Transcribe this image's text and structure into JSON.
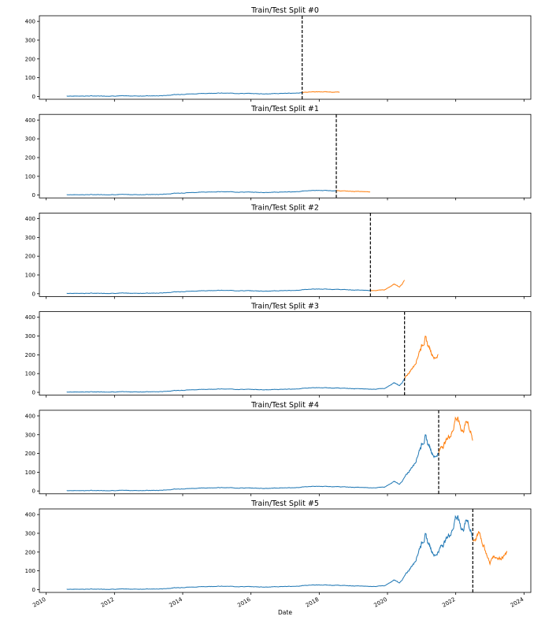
{
  "figure": {
    "xlabel": "Date",
    "x_ticks": [
      "2010",
      "2012",
      "2014",
      "2016",
      "2018",
      "2020",
      "2022",
      "2024"
    ],
    "y_ticks": [
      "0",
      "100",
      "200",
      "300",
      "400"
    ],
    "colors": {
      "train": "#1f77b4",
      "test": "#ff7f0e",
      "split_line": "#000000",
      "axes": "#000000"
    }
  },
  "chart_data": [
    {
      "type": "line",
      "title": "Train/Test Split #0",
      "xlim": [
        2009.8,
        2024.2
      ],
      "ylim": [
        -15,
        430
      ],
      "split_date": 2017.5,
      "test_end": 2018.6,
      "grid": false,
      "legend": "none"
    },
    {
      "type": "line",
      "title": "Train/Test Split #1",
      "xlim": [
        2009.8,
        2024.2
      ],
      "ylim": [
        -15,
        430
      ],
      "split_date": 2018.5,
      "test_end": 2019.5,
      "grid": false,
      "legend": "none"
    },
    {
      "type": "line",
      "title": "Train/Test Split #2",
      "xlim": [
        2009.8,
        2024.2
      ],
      "ylim": [
        -15,
        430
      ],
      "split_date": 2019.5,
      "test_end": 2020.5,
      "grid": false,
      "legend": "none"
    },
    {
      "type": "line",
      "title": "Train/Test Split #3",
      "xlim": [
        2009.8,
        2024.2
      ],
      "ylim": [
        -15,
        430
      ],
      "split_date": 2020.5,
      "test_end": 2021.5,
      "grid": false,
      "legend": "none"
    },
    {
      "type": "line",
      "title": "Train/Test Split #4",
      "xlim": [
        2009.8,
        2024.2
      ],
      "ylim": [
        -15,
        430
      ],
      "split_date": 2021.5,
      "test_end": 2022.5,
      "grid": false,
      "legend": "none"
    },
    {
      "type": "line",
      "title": "Train/Test Split #5",
      "xlim": [
        2009.8,
        2024.2
      ],
      "ylim": [
        -15,
        430
      ],
      "split_date": 2022.5,
      "test_end": 2023.5,
      "grid": false,
      "legend": "none"
    }
  ],
  "series_keypoints": {
    "x": [
      2010.6,
      2013.3,
      2013.8,
      2014.3,
      2015.0,
      2015.8,
      2016.5,
      2017.3,
      2017.8,
      2018.5,
      2019.0,
      2019.5,
      2019.9,
      2020.2,
      2020.35,
      2020.5,
      2020.8,
      2020.95,
      2021.1,
      2021.2,
      2021.4,
      2021.5,
      2021.9,
      2022.0,
      2022.2,
      2022.35,
      2022.5,
      2022.7,
      2022.85,
      2023.0,
      2023.1,
      2023.3,
      2023.5
    ],
    "y": [
      2,
      3,
      10,
      14,
      18,
      16,
      14,
      18,
      25,
      23,
      20,
      17,
      20,
      50,
      35,
      70,
      150,
      230,
      290,
      245,
      180,
      210,
      320,
      400,
      320,
      380,
      260,
      300,
      220,
      140,
      180,
      170,
      190
    ]
  }
}
